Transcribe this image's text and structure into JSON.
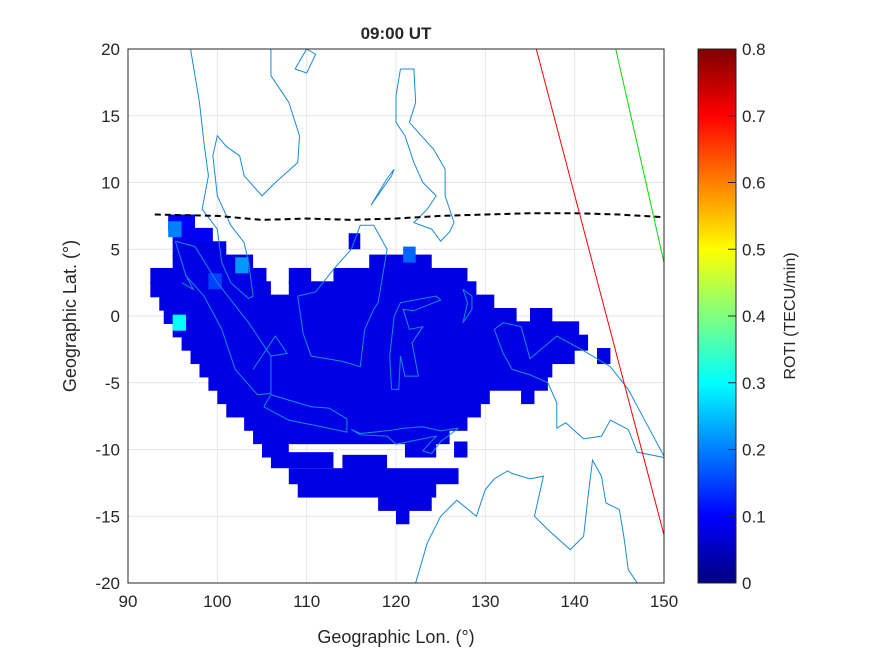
{
  "chart_data": {
    "type": "heatmap",
    "title": "09:00 UT",
    "xlabel": "Geographic Lon. (°)",
    "ylabel": "Geographic Lat. (°)",
    "xlim": [
      90,
      150
    ],
    "ylim": [
      -20,
      20
    ],
    "xticks": [
      90,
      100,
      110,
      120,
      130,
      140,
      150
    ],
    "yticks": [
      20,
      15,
      10,
      5,
      0,
      -5,
      -10,
      -15,
      -20
    ],
    "grid": true,
    "colorbar": {
      "label": "ROTI (TECU/min)",
      "colormap": "jet",
      "range": [
        0,
        0.8
      ],
      "ticks": [
        0,
        0.1,
        0.2,
        0.3,
        0.4,
        0.5,
        0.6,
        0.7,
        0.8
      ]
    },
    "roti_cells": [
      {
        "lat": 7,
        "lon": [
          94.5,
          97.5
        ],
        "value": 0.1
      },
      {
        "lat": 6,
        "lon": [
          95,
          99.5
        ],
        "value": 0.09
      },
      {
        "lat": 5.6,
        "lon": [
          114.7,
          116
        ],
        "value": 0.08
      },
      {
        "lat": 5,
        "lon": [
          95,
          101
        ],
        "value": 0.08
      },
      {
        "lat": 4,
        "lon": [
          95,
          104
        ],
        "value": 0.08
      },
      {
        "lat": 4,
        "lon": [
          117,
          124
        ],
        "value": 0.08
      },
      {
        "lat": 3,
        "lon": [
          92.5,
          105.5
        ],
        "value": 0.08
      },
      {
        "lat": 3,
        "lon": [
          108,
          110.5
        ],
        "value": 0.08
      },
      {
        "lat": 3,
        "lon": [
          113,
          128
        ],
        "value": 0.08
      },
      {
        "lat": 2,
        "lon": [
          92.5,
          106
        ],
        "value": 0.08
      },
      {
        "lat": 2,
        "lon": [
          108,
          129
        ],
        "value": 0.08
      },
      {
        "lat": 1,
        "lon": [
          93.5,
          131
        ],
        "value": 0.08
      },
      {
        "lat": 0,
        "lon": [
          94,
          133.5
        ],
        "value": 0.08
      },
      {
        "lat": 0,
        "lon": [
          135,
          137.5
        ],
        "value": 0.08
      },
      {
        "lat": -1,
        "lon": [
          95,
          140.5
        ],
        "value": 0.08
      },
      {
        "lat": -2,
        "lon": [
          96,
          141.5
        ],
        "value": 0.08
      },
      {
        "lat": -3,
        "lon": [
          97,
          140
        ],
        "value": 0.08
      },
      {
        "lat": -3,
        "lon": [
          142.5,
          144
        ],
        "value": 0.08
      },
      {
        "lat": -4,
        "lon": [
          98,
          137.5
        ],
        "value": 0.08
      },
      {
        "lat": -5,
        "lon": [
          99,
          137
        ],
        "value": 0.08
      },
      {
        "lat": -6,
        "lon": [
          100,
          130.5
        ],
        "value": 0.08
      },
      {
        "lat": -6,
        "lon": [
          134,
          135.5
        ],
        "value": 0.08
      },
      {
        "lat": -7,
        "lon": [
          101,
          129.5
        ],
        "value": 0.08
      },
      {
        "lat": -8,
        "lon": [
          103,
          128
        ],
        "value": 0.08
      },
      {
        "lat": -9,
        "lon": [
          104,
          126
        ],
        "value": 0.08
      },
      {
        "lat": -10,
        "lon": [
          105,
          108
        ],
        "value": 0.08
      },
      {
        "lat": -10,
        "lon": [
          121,
          124.5
        ],
        "value": 0.08
      },
      {
        "lat": -10,
        "lon": [
          126.5,
          128
        ],
        "value": 0.08
      },
      {
        "lat": -10.8,
        "lon": [
          106,
          113
        ],
        "value": 0.08
      },
      {
        "lat": -11,
        "lon": [
          114,
          119
        ],
        "value": 0.08
      },
      {
        "lat": -12,
        "lon": [
          108,
          127
        ],
        "value": 0.08
      },
      {
        "lat": -13,
        "lon": [
          109,
          124.5
        ],
        "value": 0.08
      },
      {
        "lat": -14,
        "lon": [
          118,
          124
        ],
        "value": 0.08
      },
      {
        "lat": -15,
        "lon": [
          120,
          121.5
        ],
        "value": 0.08
      },
      {
        "lat": -0.5,
        "lon": [
          95,
          96.5
        ],
        "value": 0.3
      },
      {
        "lat": 6.5,
        "lon": [
          94.5,
          96
        ],
        "value": 0.2
      },
      {
        "lat": 3.8,
        "lon": [
          102,
          103.5
        ],
        "value": 0.22
      },
      {
        "lat": 4.6,
        "lon": [
          120.8,
          122.2
        ],
        "value": 0.18
      },
      {
        "lat": 2.6,
        "lon": [
          99,
          100.5
        ],
        "value": 0.15
      }
    ],
    "magnetic_equator": [
      [
        93,
        7.6
      ],
      [
        100,
        7.5
      ],
      [
        105,
        7.2
      ],
      [
        110,
        7.3
      ],
      [
        115,
        7.2
      ],
      [
        120,
        7.3
      ],
      [
        125,
        7.5
      ],
      [
        130,
        7.6
      ],
      [
        135,
        7.7
      ],
      [
        140,
        7.7
      ],
      [
        145,
        7.6
      ],
      [
        150,
        7.4
      ]
    ],
    "red_line": [
      [
        135.7,
        20
      ],
      [
        150,
        -16.4
      ]
    ],
    "green_line": [
      [
        144.6,
        20
      ],
      [
        150,
        4
      ]
    ],
    "coastlines": [
      [
        [
          97,
          20
        ],
        [
          98,
          16
        ],
        [
          98.5,
          13
        ],
        [
          99,
          10.5
        ],
        [
          98.3,
          8
        ],
        [
          100,
          6.5
        ],
        [
          100.5,
          4
        ],
        [
          101.5,
          2.5
        ],
        [
          103.5,
          1.3
        ],
        [
          104,
          1.5
        ],
        [
          103.5,
          4
        ],
        [
          103,
          5.5
        ],
        [
          101.5,
          6.8
        ],
        [
          100,
          9
        ],
        [
          99.5,
          12
        ],
        [
          100,
          13.5
        ],
        [
          101,
          12.7
        ],
        [
          102.5,
          12
        ],
        [
          103,
          10.5
        ],
        [
          105,
          9
        ],
        [
          106.5,
          10
        ],
        [
          109,
          11.5
        ],
        [
          109.2,
          13.5
        ],
        [
          108,
          16
        ],
        [
          106,
          18
        ],
        [
          106,
          20
        ]
      ],
      [
        [
          95.3,
          5.6
        ],
        [
          97.5,
          5.2
        ],
        [
          100,
          2.5
        ],
        [
          103.5,
          -0.5
        ],
        [
          106,
          -3
        ],
        [
          106,
          -5.8
        ],
        [
          104.5,
          -5.9
        ],
        [
          102,
          -4
        ],
        [
          100.5,
          -1
        ],
        [
          98.5,
          1.5
        ],
        [
          96.5,
          3
        ],
        [
          95.3,
          5.6
        ]
      ],
      [
        [
          105.2,
          -6.8
        ],
        [
          106,
          -5.9
        ],
        [
          108,
          -6.3
        ],
        [
          110.5,
          -6.8
        ],
        [
          112.5,
          -6.9
        ],
        [
          114.5,
          -7.7
        ],
        [
          114.5,
          -8.7
        ],
        [
          111,
          -8.2
        ],
        [
          108,
          -7.8
        ],
        [
          105.2,
          -6.8
        ]
      ],
      [
        [
          109,
          1.5
        ],
        [
          109.6,
          -1.3
        ],
        [
          110.5,
          -3
        ],
        [
          114,
          -3.4
        ],
        [
          116,
          -3.8
        ],
        [
          116.5,
          -1
        ],
        [
          117.5,
          0.5
        ],
        [
          118,
          1
        ],
        [
          119,
          5
        ],
        [
          117.5,
          6.8
        ],
        [
          116,
          6.8
        ],
        [
          115,
          5
        ],
        [
          113,
          3.5
        ],
        [
          111,
          1.8
        ],
        [
          109,
          1.5
        ]
      ],
      [
        [
          119.5,
          -5.5
        ],
        [
          119.3,
          -3
        ],
        [
          119.8,
          0
        ],
        [
          120.5,
          1
        ],
        [
          124.5,
          1.5
        ],
        [
          125,
          1.2
        ],
        [
          122,
          0.4
        ],
        [
          120.8,
          0.5
        ],
        [
          121.5,
          -1
        ],
        [
          123,
          -0.8
        ],
        [
          121.8,
          -2
        ],
        [
          122.5,
          -4.5
        ],
        [
          121,
          -4.5
        ],
        [
          120.5,
          -3
        ],
        [
          120.3,
          -5.5
        ],
        [
          119.5,
          -5.5
        ]
      ],
      [
        [
          120.5,
          18.5
        ],
        [
          122,
          18.5
        ],
        [
          122.2,
          16
        ],
        [
          121.5,
          14.5
        ],
        [
          123.5,
          13
        ],
        [
          124.2,
          12.5
        ],
        [
          125.5,
          11
        ],
        [
          125.5,
          9
        ],
        [
          126.5,
          7
        ],
        [
          126,
          6.3
        ],
        [
          125,
          5.6
        ],
        [
          124,
          6.5
        ],
        [
          122,
          7
        ],
        [
          123.5,
          8
        ],
        [
          124.5,
          9
        ],
        [
          123,
          10
        ],
        [
          122,
          11.5
        ],
        [
          121,
          13.5
        ],
        [
          120,
          14.5
        ],
        [
          120,
          16.5
        ],
        [
          120.5,
          18.5
        ]
      ],
      [
        [
          117.2,
          8.3
        ],
        [
          119.5,
          10.5
        ],
        [
          119.8,
          11
        ],
        [
          119,
          10.3
        ],
        [
          117.2,
          8.3
        ]
      ],
      [
        [
          115,
          -8.5
        ],
        [
          116,
          -8.8
        ],
        [
          119,
          -8.6
        ],
        [
          121,
          -8.4
        ],
        [
          123,
          -8.3
        ],
        [
          125,
          -8.6
        ],
        [
          127,
          -8.4
        ],
        [
          125,
          -9.4
        ],
        [
          124,
          -10.3
        ],
        [
          123,
          -10.1
        ],
        [
          124.5,
          -9
        ],
        [
          120,
          -9.6
        ],
        [
          119,
          -9
        ],
        [
          116,
          -8.9
        ],
        [
          115,
          -8.5
        ]
      ],
      [
        [
          131,
          -1
        ],
        [
          132,
          -0.5
        ],
        [
          134,
          -0.8
        ],
        [
          135,
          -3.2
        ],
        [
          138,
          -1.5
        ],
        [
          141,
          -2.6
        ],
        [
          144,
          -3.8
        ],
        [
          146,
          -5.5
        ],
        [
          148,
          -8
        ],
        [
          150,
          -10.5
        ]
      ],
      [
        [
          150,
          -10.6
        ],
        [
          147,
          -10.2
        ],
        [
          146,
          -8.5
        ],
        [
          144,
          -7.8
        ],
        [
          143,
          -9
        ],
        [
          141,
          -9.2
        ],
        [
          139,
          -8
        ],
        [
          138,
          -8.4
        ],
        [
          138,
          -6.5
        ],
        [
          137,
          -5
        ],
        [
          135,
          -4.4
        ],
        [
          133,
          -4
        ],
        [
          132,
          -2.8
        ],
        [
          131,
          -1
        ]
      ],
      [
        [
          127.5,
          2
        ],
        [
          128,
          1
        ],
        [
          127.5,
          -0.5
        ],
        [
          128.5,
          0.5
        ],
        [
          128.5,
          1.5
        ],
        [
          127.5,
          2
        ]
      ],
      [
        [
          122.2,
          -20
        ],
        [
          123.5,
          -17
        ],
        [
          125,
          -15
        ],
        [
          126.8,
          -13.8
        ],
        [
          129,
          -15
        ],
        [
          130,
          -13
        ],
        [
          131,
          -12.2
        ],
        [
          132.5,
          -11.6
        ],
        [
          133,
          -11.8
        ],
        [
          135,
          -12.2
        ],
        [
          136.5,
          -12
        ],
        [
          136,
          -13.5
        ],
        [
          135.5,
          -15
        ],
        [
          137,
          -16
        ],
        [
          139.5,
          -17.5
        ],
        [
          141,
          -16.5
        ],
        [
          141.5,
          -13.5
        ],
        [
          142,
          -10.8
        ],
        [
          143,
          -12
        ],
        [
          143.5,
          -14
        ],
        [
          145,
          -14.5
        ],
        [
          145.5,
          -16.5
        ],
        [
          146,
          -19
        ],
        [
          147,
          -20
        ]
      ],
      [
        [
          108.7,
          18.5
        ],
        [
          110,
          20
        ],
        [
          111,
          19.6
        ],
        [
          110,
          18.2
        ],
        [
          108.7,
          18.5
        ]
      ],
      [
        [
          104,
          -4
        ],
        [
          106.5,
          -1.5
        ],
        [
          107.8,
          -2.8
        ],
        [
          106,
          -3
        ]
      ],
      [
        [
          96,
          2.5
        ],
        [
          97.3,
          2
        ],
        [
          96.5,
          3
        ]
      ]
    ],
    "colors": {
      "coast": "#1a8ad4",
      "red_line": "#ff0000",
      "green_line": "#00e000",
      "equator": "#000000",
      "grid": "#e6e6e6"
    }
  }
}
